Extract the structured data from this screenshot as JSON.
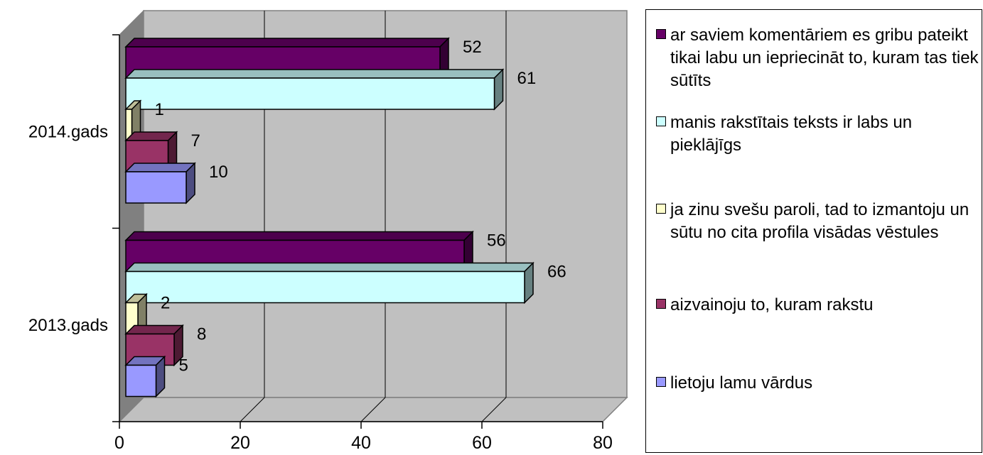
{
  "chart_data": {
    "type": "bar",
    "orientation": "horizontal",
    "style": "3d-clustered",
    "categories": [
      "2014.gads",
      "2013.gads"
    ],
    "series": [
      {
        "name": "ar saviem komentāriem es gribu pateikt tikai labu un iepriecināt to, kuram tas tiek sūtīts",
        "color": "#660066",
        "values": [
          52,
          56
        ]
      },
      {
        "name": "manis rakstītais teksts ir labs un pieklājīgs",
        "color": "#CCFFFF",
        "values": [
          61,
          66
        ]
      },
      {
        "name": "ja zinu svešu paroli, tad to izmantoju un sūtu no cita profila visādas vēstules",
        "color": "#FFFFCC",
        "values": [
          1,
          2
        ]
      },
      {
        "name": "aizvainoju to, kuram rakstu",
        "color": "#993366",
        "values": [
          7,
          8
        ]
      },
      {
        "name": "lietoju lamu vārdus",
        "color": "#9999FF",
        "values": [
          10,
          5
        ]
      }
    ],
    "data_labels": [
      [
        "52",
        "61",
        "1",
        "7",
        "10"
      ],
      [
        "56",
        "66",
        "2",
        "8",
        "5"
      ]
    ],
    "xaxis": {
      "ticks": [
        "0",
        "20",
        "40",
        "60",
        "80"
      ],
      "range": [
        0,
        80
      ]
    },
    "grid": true,
    "wall_color": "#C0C0C0",
    "legend_position": "right"
  }
}
